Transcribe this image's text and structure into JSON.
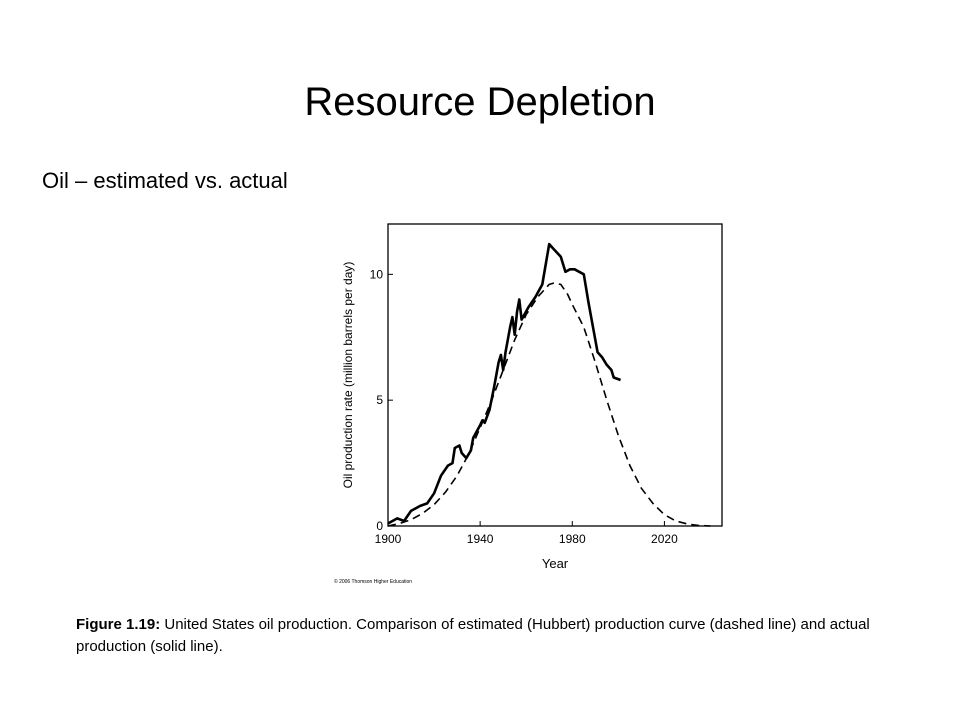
{
  "slide": {
    "title": "Resource Depletion",
    "subtitle": "Oil – estimated vs. actual"
  },
  "figure": {
    "copyright": "© 2006 Thomson Higher Education",
    "caption_label": "Figure 1.19:",
    "caption_text": " United States oil production. Comparison of estimated (Hubbert) production curve (dashed line) and actual production (solid line)."
  },
  "chart_data": {
    "type": "line",
    "title": "",
    "xlabel": "Year",
    "ylabel": "Oil production rate (million barrels per day)",
    "xlim": [
      1900,
      2045
    ],
    "ylim": [
      0,
      12
    ],
    "xticks": [
      1900,
      1940,
      1980,
      2020
    ],
    "yticks": [
      0,
      5,
      10
    ],
    "grid": false,
    "series": [
      {
        "style": "solid",
        "color": "#000000",
        "points": [
          [
            1900,
            0.1
          ],
          [
            1904,
            0.3
          ],
          [
            1907,
            0.2
          ],
          [
            1910,
            0.6
          ],
          [
            1914,
            0.8
          ],
          [
            1917,
            0.9
          ],
          [
            1920,
            1.3
          ],
          [
            1923,
            2.0
          ],
          [
            1926,
            2.4
          ],
          [
            1928,
            2.5
          ],
          [
            1929,
            3.1
          ],
          [
            1931,
            3.2
          ],
          [
            1932,
            2.9
          ],
          [
            1934,
            2.7
          ],
          [
            1936,
            3.0
          ],
          [
            1937,
            3.5
          ],
          [
            1940,
            4.0
          ],
          [
            1941,
            4.2
          ],
          [
            1942,
            4.1
          ],
          [
            1944,
            4.6
          ],
          [
            1946,
            5.5
          ],
          [
            1948,
            6.5
          ],
          [
            1949,
            6.8
          ],
          [
            1950,
            6.2
          ],
          [
            1951,
            6.9
          ],
          [
            1953,
            7.9
          ],
          [
            1954,
            8.3
          ],
          [
            1955,
            7.6
          ],
          [
            1956,
            8.5
          ],
          [
            1957,
            9.0
          ],
          [
            1958,
            8.2
          ],
          [
            1961,
            8.7
          ],
          [
            1964,
            9.1
          ],
          [
            1967,
            9.6
          ],
          [
            1970,
            11.2
          ],
          [
            1972,
            11.0
          ],
          [
            1975,
            10.7
          ],
          [
            1977,
            10.1
          ],
          [
            1979,
            10.2
          ],
          [
            1981,
            10.2
          ],
          [
            1983,
            10.1
          ],
          [
            1985,
            10.0
          ],
          [
            1987,
            8.9
          ],
          [
            1989,
            7.9
          ],
          [
            1991,
            6.9
          ],
          [
            1993,
            6.7
          ],
          [
            1995,
            6.4
          ],
          [
            1997,
            6.2
          ],
          [
            1998,
            5.9
          ],
          [
            2001,
            5.8
          ]
        ]
      },
      {
        "style": "dashed",
        "color": "#000000",
        "points": [
          [
            1900,
            0.0
          ],
          [
            1905,
            0.1
          ],
          [
            1910,
            0.25
          ],
          [
            1915,
            0.5
          ],
          [
            1920,
            0.85
          ],
          [
            1925,
            1.35
          ],
          [
            1930,
            2.0
          ],
          [
            1935,
            2.85
          ],
          [
            1940,
            3.9
          ],
          [
            1945,
            5.0
          ],
          [
            1950,
            6.2
          ],
          [
            1955,
            7.4
          ],
          [
            1960,
            8.4
          ],
          [
            1965,
            9.1
          ],
          [
            1970,
            9.6
          ],
          [
            1972,
            9.65
          ],
          [
            1975,
            9.6
          ],
          [
            1978,
            9.2
          ],
          [
            1980,
            8.8
          ],
          [
            1985,
            7.9
          ],
          [
            1990,
            6.5
          ],
          [
            1995,
            5.0
          ],
          [
            2000,
            3.6
          ],
          [
            2005,
            2.4
          ],
          [
            2010,
            1.5
          ],
          [
            2015,
            0.9
          ],
          [
            2020,
            0.45
          ],
          [
            2025,
            0.2
          ],
          [
            2030,
            0.08
          ],
          [
            2035,
            0.02
          ],
          [
            2040,
            0.0
          ]
        ]
      }
    ]
  }
}
